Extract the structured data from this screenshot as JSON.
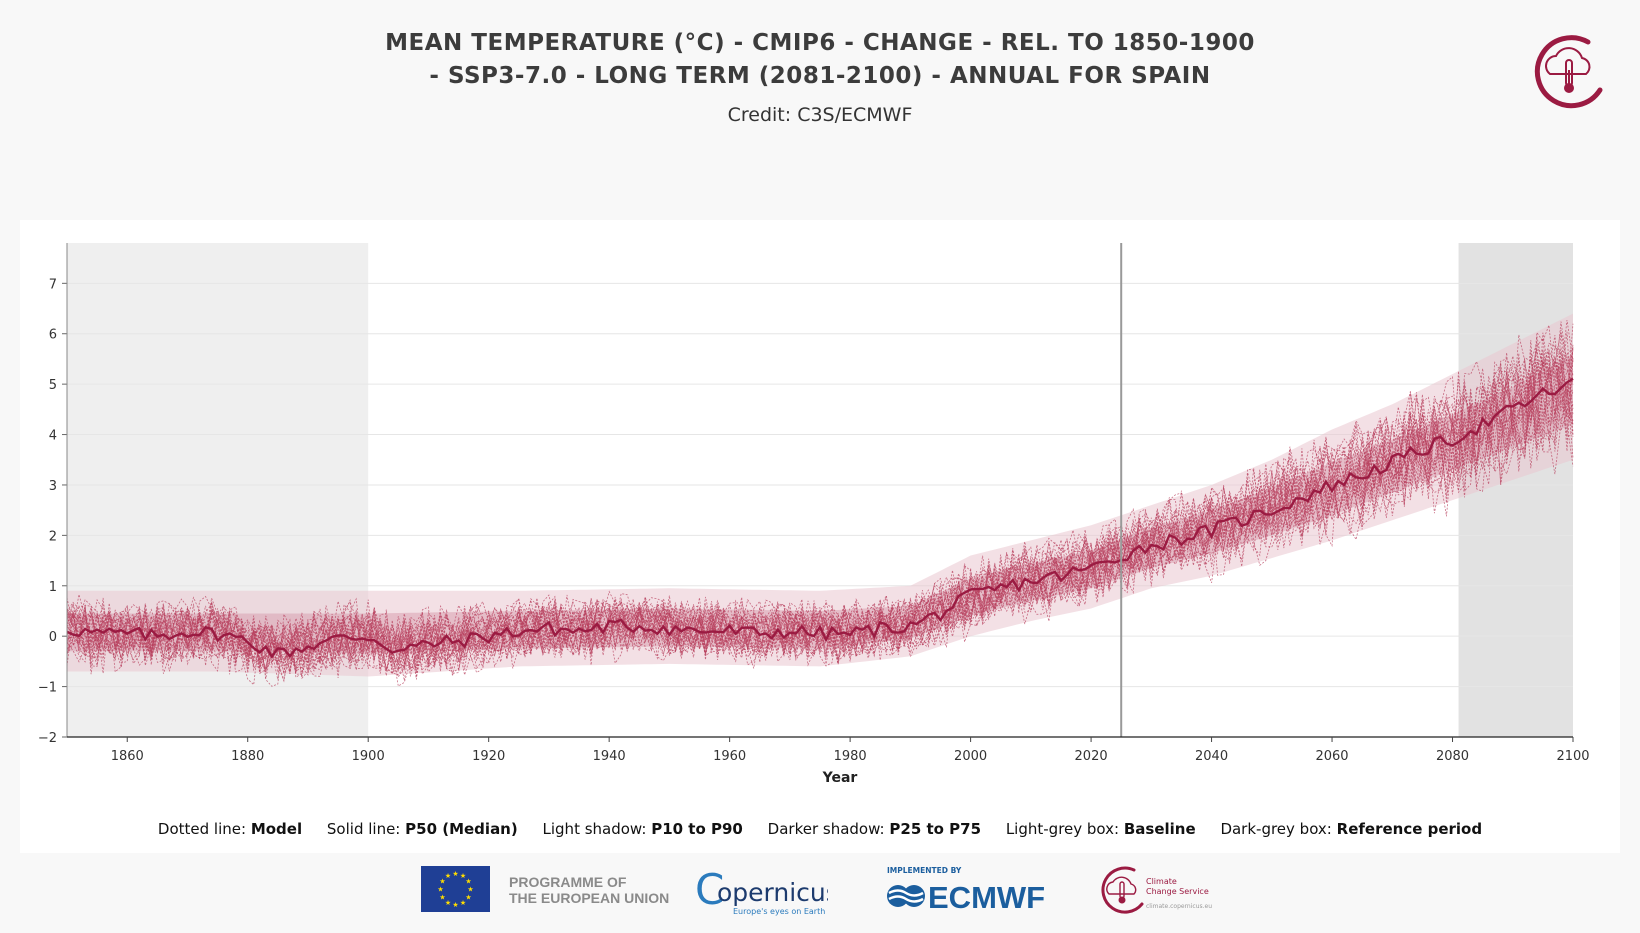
{
  "header": {
    "title_line1": "MEAN TEMPERATURE (°C) - CMIP6 - CHANGE - REL. TO 1850-1900",
    "title_line2": "- SSP3-7.0 - LONG TERM (2081-2100) - ANNUAL FOR SPAIN",
    "credit": "Credit: C3S/ECMWF"
  },
  "legend": [
    {
      "label": "Dotted line:",
      "value": "Model"
    },
    {
      "label": "Solid line:",
      "value": "P50 (Median)"
    },
    {
      "label": "Light shadow:",
      "value": "P10 to P90"
    },
    {
      "label": "Darker shadow:",
      "value": "P25 to P75"
    },
    {
      "label": "Light-grey box:",
      "value": "Baseline"
    },
    {
      "label": "Dark-grey box:",
      "value": "Reference period"
    }
  ],
  "footer": {
    "eu_line1": "PROGRAMME OF",
    "eu_line2": "THE EUROPEAN UNION",
    "copernicus_name": "opernicus",
    "copernicus_c": "C",
    "copernicus_tagline": "Europe's eyes on Earth",
    "ecmwf_implemented": "IMPLEMENTED BY",
    "ecmwf_name": "ECMWF",
    "c3s_line1": "Climate",
    "c3s_line2": "Change Service",
    "c3s_url": "climate.copernicus.eu"
  },
  "colors": {
    "model": "#b8415f",
    "median": "#9b1b42",
    "band_light": "#e9c7d0",
    "band_dark": "#d8a0b0",
    "baseline_box": "#efefef",
    "reference_box": "#e2e2e2",
    "present_line": "#999999"
  },
  "chart_data": {
    "type": "line",
    "xlabel": "Year",
    "ylabel": "",
    "xlim": [
      1850,
      2100
    ],
    "ylim": [
      -2,
      7.8
    ],
    "xticks": [
      1860,
      1880,
      1900,
      1920,
      1940,
      1960,
      1980,
      2000,
      2020,
      2040,
      2060,
      2080,
      2100
    ],
    "yticks": [
      -2,
      -1,
      0,
      1,
      2,
      3,
      4,
      5,
      6,
      7
    ],
    "ytick_labels": [
      "−2",
      "−1",
      "0",
      "1",
      "2",
      "3",
      "4",
      "5",
      "6",
      "7"
    ],
    "grid": "horizontal",
    "baseline_period": [
      1850,
      1900
    ],
    "reference_period": [
      2081,
      2100
    ],
    "present_year": 2025,
    "model_count": 30,
    "median_x": [
      1850,
      1855,
      1860,
      1865,
      1870,
      1875,
      1880,
      1885,
      1890,
      1895,
      1900,
      1905,
      1910,
      1915,
      1920,
      1925,
      1930,
      1935,
      1940,
      1945,
      1950,
      1955,
      1960,
      1965,
      1970,
      1975,
      1980,
      1985,
      1990,
      1995,
      2000,
      2005,
      2010,
      2015,
      2020,
      2025,
      2030,
      2035,
      2040,
      2045,
      2050,
      2055,
      2060,
      2065,
      2070,
      2075,
      2080,
      2085,
      2090,
      2095,
      2100
    ],
    "median_y": [
      0.15,
      0.05,
      0.05,
      0.0,
      0.1,
      0.05,
      -0.1,
      -0.35,
      -0.2,
      -0.05,
      0.0,
      -0.3,
      -0.15,
      -0.1,
      0.0,
      0.1,
      0.15,
      0.1,
      0.2,
      0.2,
      0.15,
      0.1,
      0.1,
      0.05,
      0.1,
      0.05,
      0.05,
      0.15,
      0.2,
      0.45,
      0.8,
      0.95,
      1.1,
      1.2,
      1.35,
      1.6,
      1.8,
      1.95,
      2.1,
      2.3,
      2.5,
      2.75,
      3.0,
      3.2,
      3.45,
      3.7,
      3.9,
      4.2,
      4.5,
      4.8,
      5.0
    ],
    "p10_p90": {
      "x": [
        1850,
        1875,
        1900,
        1925,
        1950,
        1975,
        1990,
        2000,
        2010,
        2020,
        2030,
        2040,
        2050,
        2060,
        2070,
        2080,
        2090,
        2100
      ],
      "low": [
        -0.7,
        -0.7,
        -0.8,
        -0.6,
        -0.55,
        -0.6,
        -0.4,
        0.0,
        0.3,
        0.55,
        0.95,
        1.2,
        1.55,
        1.9,
        2.3,
        2.7,
        3.1,
        3.5
      ],
      "high": [
        0.9,
        0.9,
        0.9,
        0.9,
        0.95,
        0.9,
        1.0,
        1.6,
        1.9,
        2.2,
        2.6,
        3.0,
        3.5,
        4.1,
        4.6,
        5.2,
        5.8,
        6.4
      ]
    },
    "p25_p75": {
      "x": [
        1850,
        1875,
        1900,
        1925,
        1950,
        1975,
        1990,
        2000,
        2010,
        2020,
        2030,
        2040,
        2050,
        2060,
        2070,
        2080,
        2090,
        2100
      ],
      "low": [
        -0.3,
        -0.3,
        -0.35,
        -0.25,
        -0.2,
        -0.25,
        -0.05,
        0.4,
        0.7,
        0.95,
        1.35,
        1.65,
        2.0,
        2.4,
        2.85,
        3.3,
        3.75,
        4.2
      ],
      "high": [
        0.45,
        0.45,
        0.45,
        0.5,
        0.55,
        0.5,
        0.6,
        1.15,
        1.45,
        1.7,
        2.15,
        2.5,
        2.95,
        3.45,
        3.9,
        4.4,
        4.95,
        5.6
      ]
    }
  }
}
